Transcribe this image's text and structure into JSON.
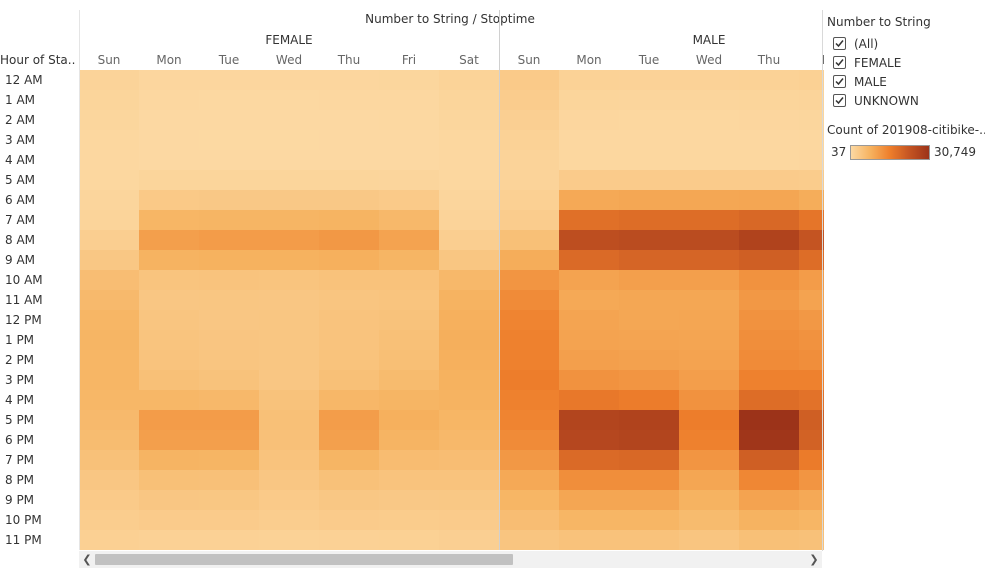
{
  "chart_data": {
    "type": "heatmap",
    "title": "Number to String / Stoptime",
    "row_header": "Hour of Sta..",
    "rows": [
      "12 AM",
      "1 AM",
      "2 AM",
      "3 AM",
      "4 AM",
      "5 AM",
      "6 AM",
      "7 AM",
      "8 AM",
      "9 AM",
      "10 AM",
      "11 AM",
      "12 PM",
      "1 PM",
      "2 PM",
      "3 PM",
      "4 PM",
      "5 PM",
      "6 PM",
      "7 PM",
      "8 PM",
      "9 PM",
      "10 PM",
      "11 PM"
    ],
    "groups": [
      {
        "name": "FEMALE",
        "columns": [
          "Sun",
          "Mon",
          "Tue",
          "Wed",
          "Thu",
          "Fri",
          "Sat"
        ]
      },
      {
        "name": "MALE",
        "columns": [
          "Sun",
          "Mon",
          "Tue",
          "Wed",
          "Thu",
          "Fri"
        ]
      }
    ],
    "column_labels": [
      "Sun",
      "Mon",
      "Tue",
      "Wed",
      "Thu",
      "Fri",
      "Sat",
      "Sun",
      "Mon",
      "Tue",
      "Wed",
      "Thu",
      "Fri"
    ],
    "color_min": 37,
    "color_max": 30749,
    "values": [
      [
        1200,
        600,
        550,
        550,
        600,
        700,
        1300,
        3000,
        1500,
        1400,
        1400,
        1500,
        1700
      ],
      [
        900,
        350,
        300,
        300,
        350,
        400,
        900,
        2500,
        900,
        800,
        800,
        900,
        1100
      ],
      [
        700,
        200,
        180,
        180,
        200,
        250,
        700,
        2000,
        600,
        500,
        500,
        600,
        700
      ],
      [
        500,
        150,
        130,
        130,
        150,
        180,
        500,
        1500,
        400,
        350,
        350,
        400,
        500
      ],
      [
        400,
        180,
        170,
        170,
        180,
        200,
        400,
        1200,
        500,
        450,
        450,
        500,
        550
      ],
      [
        500,
        900,
        900,
        900,
        900,
        850,
        500,
        1200,
        2800,
        2800,
        2800,
        2800,
        2600
      ],
      [
        800,
        3200,
        3300,
        3300,
        3300,
        3000,
        800,
        1800,
        9000,
        9300,
        9300,
        9500,
        8500
      ],
      [
        1100,
        7000,
        7200,
        7200,
        7400,
        6500,
        1200,
        2500,
        18000,
        18500,
        18500,
        19500,
        17000
      ],
      [
        2200,
        10500,
        11000,
        11000,
        11500,
        10000,
        2200,
        5000,
        24500,
        25000,
        25000,
        27000,
        23000
      ],
      [
        3500,
        7500,
        7700,
        7700,
        8000,
        7200,
        3800,
        8500,
        19000,
        20000,
        20000,
        21000,
        18500
      ],
      [
        5500,
        4200,
        4300,
        4200,
        4500,
        4500,
        6500,
        12000,
        10000,
        10500,
        10500,
        12500,
        11000
      ],
      [
        6300,
        3700,
        3800,
        3700,
        4000,
        4200,
        7500,
        13500,
        9000,
        9300,
        9300,
        11500,
        10000
      ],
      [
        7000,
        4000,
        3700,
        3800,
        4300,
        4600,
        8000,
        14500,
        9800,
        9400,
        9500,
        12500,
        11500
      ],
      [
        7200,
        4200,
        3900,
        3800,
        4300,
        5000,
        8200,
        15000,
        10000,
        9800,
        9700,
        13000,
        12500
      ],
      [
        7000,
        4300,
        4000,
        3800,
        4400,
        5200,
        8000,
        15000,
        10500,
        10200,
        10000,
        13500,
        13000
      ],
      [
        7000,
        5000,
        4600,
        3700,
        5000,
        6000,
        7700,
        15500,
        12500,
        12000,
        10600,
        15000,
        15000
      ],
      [
        6800,
        6800,
        6500,
        4600,
        6700,
        7200,
        7500,
        15000,
        16500,
        15700,
        12500,
        18500,
        17500
      ],
      [
        6300,
        11000,
        11000,
        5000,
        10800,
        8000,
        7000,
        14500,
        26500,
        27000,
        15500,
        30749,
        21000
      ],
      [
        5800,
        10500,
        10500,
        4900,
        10300,
        7300,
        6500,
        13500,
        26000,
        26500,
        15000,
        30000,
        20500
      ],
      [
        4800,
        7300,
        7200,
        4300,
        7100,
        5700,
        5500,
        11500,
        19000,
        19500,
        12000,
        21000,
        16000
      ],
      [
        3700,
        5000,
        4900,
        3700,
        4800,
        4300,
        4300,
        9000,
        13000,
        13000,
        9500,
        14000,
        12000
      ],
      [
        3000,
        3700,
        3600,
        3000,
        3500,
        3300,
        3400,
        7000,
        9500,
        9500,
        7500,
        10000,
        9000
      ],
      [
        2400,
        2800,
        2700,
        2400,
        2700,
        2600,
        2700,
        5500,
        7000,
        7000,
        6000,
        7500,
        7000
      ],
      [
        1800,
        1600,
        1600,
        1500,
        1600,
        1700,
        2000,
        4000,
        4500,
        4500,
        4000,
        5000,
        4800
      ]
    ],
    "legend": {
      "filter_title": "Number to String",
      "filter_items": [
        "(All)",
        "FEMALE",
        "MALE",
        "UNKNOWN"
      ],
      "color_title": "Count of 201908-citibike-..",
      "min_label": "37",
      "max_label": "30,749"
    },
    "color_ramp": [
      "#fcd9a3",
      "#f6b25f",
      "#ee7e2b",
      "#c45422",
      "#9c3319"
    ]
  }
}
